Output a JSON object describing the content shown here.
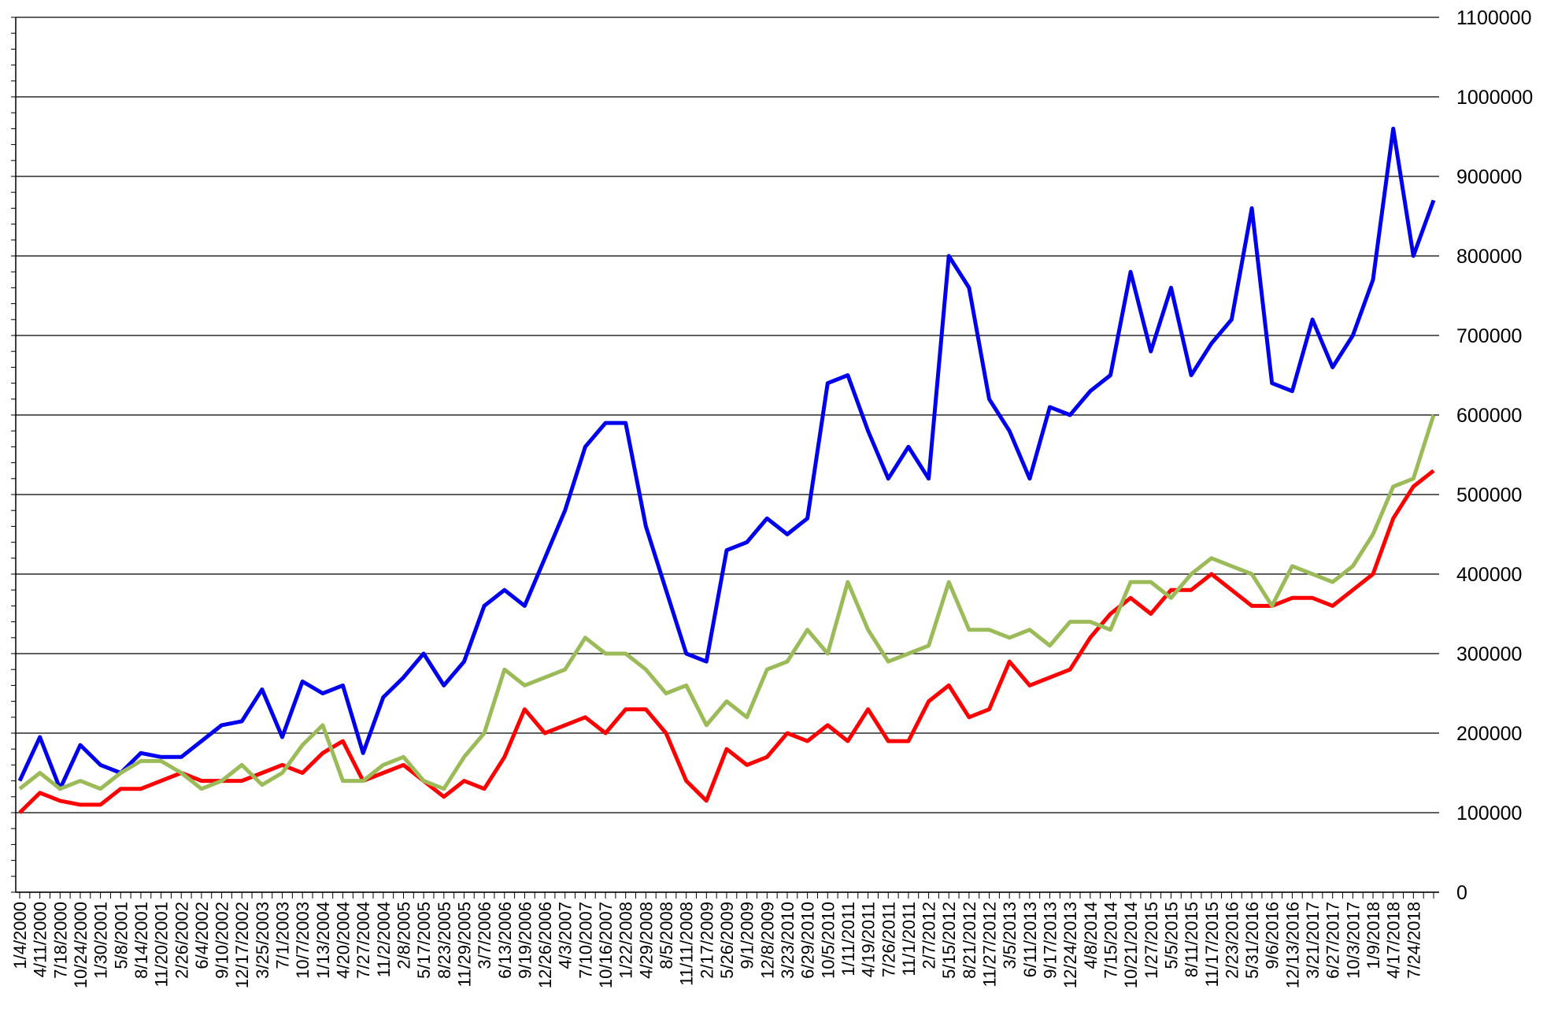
{
  "chart_data": {
    "type": "line",
    "categories": [
      "1/4/2000",
      "4/11/2000",
      "7/18/2000",
      "10/24/2000",
      "1/30/2001",
      "5/8/2001",
      "8/14/2001",
      "11/20/2001",
      "2/26/2002",
      "6/4/2002",
      "9/10/2002",
      "12/17/2002",
      "3/25/2003",
      "7/1/2003",
      "10/7/2003",
      "1/13/2004",
      "4/20/2004",
      "7/27/2004",
      "11/2/2004",
      "2/8/2005",
      "5/17/2005",
      "8/23/2005",
      "11/29/2005",
      "3/7/2006",
      "6/13/2006",
      "9/19/2006",
      "12/26/2006",
      "4/3/2007",
      "7/10/2007",
      "10/16/2007",
      "1/22/2008",
      "4/29/2008",
      "8/5/2008",
      "11/11/2008",
      "2/17/2009",
      "5/26/2009",
      "9/1/2009",
      "12/8/2009",
      "3/23/2010",
      "6/29/2010",
      "10/5/2010",
      "1/11/2011",
      "4/19/2011",
      "7/26/2011",
      "11/1/2011",
      "2/7/2012",
      "5/15/2012",
      "8/21/2012",
      "11/27/2012",
      "3/5/2013",
      "6/11/2013",
      "9/17/2013",
      "12/24/2013",
      "4/8/2014",
      "7/15/2014",
      "10/21/2014",
      "1/27/2015",
      "5/5/2015",
      "8/11/2015",
      "11/17/2015",
      "2/23/2016",
      "5/31/2016",
      "9/6/2016",
      "12/13/2016",
      "3/21/2017",
      "6/27/2017",
      "10/3/2017",
      "1/9/2018",
      "4/17/2018",
      "7/24/2018",
      null
    ],
    "series": [
      {
        "color": "#0000ee",
        "values": [
          140000,
          195000,
          130000,
          185000,
          160000,
          150000,
          175000,
          170000,
          170000,
          190000,
          210000,
          215000,
          255000,
          195000,
          265000,
          250000,
          260000,
          175000,
          245000,
          270000,
          300000,
          260000,
          290000,
          360000,
          380000,
          360000,
          420000,
          480000,
          560000,
          590000,
          590000,
          460000,
          380000,
          300000,
          290000,
          430000,
          440000,
          470000,
          450000,
          470000,
          640000,
          650000,
          580000,
          520000,
          560000,
          520000,
          800000,
          760000,
          620000,
          580000,
          520000,
          610000,
          600000,
          630000,
          650000,
          780000,
          680000,
          760000,
          650000,
          690000,
          720000,
          860000,
          640000,
          630000,
          720000,
          660000,
          700000,
          770000,
          960000,
          800000,
          870000
        ]
      },
      {
        "color": "#ff0000",
        "values": [
          100000,
          125000,
          115000,
          110000,
          110000,
          130000,
          130000,
          140000,
          150000,
          140000,
          140000,
          140000,
          150000,
          160000,
          150000,
          175000,
          190000,
          140000,
          150000,
          160000,
          140000,
          120000,
          140000,
          130000,
          170000,
          230000,
          200000,
          210000,
          220000,
          200000,
          230000,
          230000,
          200000,
          140000,
          115000,
          180000,
          160000,
          170000,
          200000,
          190000,
          210000,
          190000,
          230000,
          190000,
          190000,
          240000,
          260000,
          220000,
          230000,
          290000,
          260000,
          270000,
          280000,
          320000,
          350000,
          370000,
          350000,
          380000,
          380000,
          400000,
          380000,
          360000,
          360000,
          370000,
          370000,
          360000,
          380000,
          400000,
          470000,
          510000,
          530000
        ]
      },
      {
        "color": "#9bbb59",
        "values": [
          130000,
          150000,
          130000,
          140000,
          130000,
          150000,
          165000,
          165000,
          150000,
          130000,
          140000,
          160000,
          135000,
          150000,
          185000,
          210000,
          140000,
          140000,
          160000,
          170000,
          140000,
          130000,
          170000,
          200000,
          280000,
          260000,
          270000,
          280000,
          320000,
          300000,
          300000,
          280000,
          250000,
          260000,
          210000,
          240000,
          220000,
          280000,
          290000,
          330000,
          300000,
          390000,
          330000,
          290000,
          300000,
          310000,
          390000,
          330000,
          330000,
          320000,
          330000,
          310000,
          340000,
          340000,
          330000,
          390000,
          390000,
          370000,
          400000,
          420000,
          410000,
          400000,
          360000,
          410000,
          400000,
          390000,
          410000,
          450000,
          510000,
          520000,
          600000
        ]
      }
    ],
    "ylim": [
      0,
      1100000
    ],
    "yticks": [
      0,
      100000,
      200000,
      300000,
      400000,
      500000,
      600000,
      700000,
      800000,
      900000,
      1000000,
      1100000
    ],
    "grid": true
  }
}
